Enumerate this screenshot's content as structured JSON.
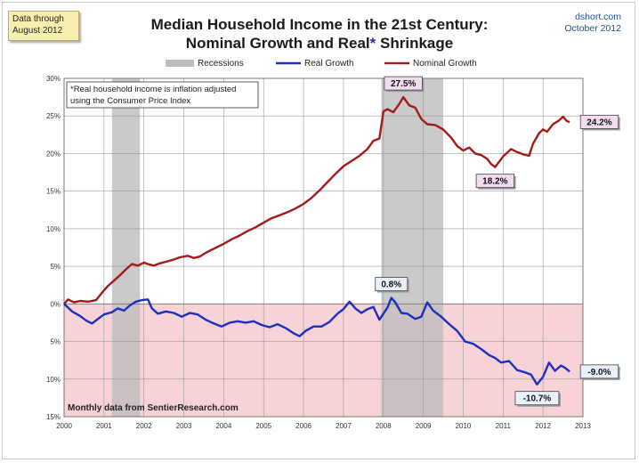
{
  "header": {
    "data_note": [
      "Data through",
      "August 2012"
    ],
    "title_line1": "Median Household Income in the 21st Century:",
    "title_line2_a": "Nominal  Growth and Real",
    "title_line2_star": "*",
    "title_line2_b": " Shrinkage",
    "source_site": "dshort.com",
    "source_date": "October 2012"
  },
  "annotation": [
    "*Real household  income is inflation adjusted",
    "using  the Consumer Price Index"
  ],
  "footer_note": "Monthly data from SentierResearch.com",
  "colors": {
    "nominal": "#a31a1a",
    "real": "#1b2fc0",
    "recession": "#bdbdbd",
    "negative_zone": "#f7d2d6",
    "callout_nominal_bg": "#f2dcf0",
    "callout_real_bg": "#e8f1fb"
  },
  "chart_data": {
    "type": "line",
    "title": "Median Household Income in the 21st Century: Nominal  Growth and Real* Shrinkage",
    "xlabel": "",
    "ylabel": "",
    "xlim": [
      2000,
      2013
    ],
    "ylim": [
      -15,
      30
    ],
    "x_ticks": [
      "2000",
      "2001",
      "2002",
      "2003",
      "2004",
      "2005",
      "2006",
      "2007",
      "2008",
      "2009",
      "2010",
      "2011",
      "2012",
      "2013"
    ],
    "y_ticks": [
      {
        "value": 30,
        "label": "30%"
      },
      {
        "value": 25,
        "label": "25%"
      },
      {
        "value": 20,
        "label": "20%"
      },
      {
        "value": 15,
        "label": "15%"
      },
      {
        "value": 10,
        "label": "10%"
      },
      {
        "value": 5,
        "label": "5%"
      },
      {
        "value": 0,
        "label": "0%"
      },
      {
        "value": -5,
        "label": "5%"
      },
      {
        "value": -10,
        "label": "10%"
      },
      {
        "value": -15,
        "label": "15%"
      }
    ],
    "grid": true,
    "legend": {
      "position": "top",
      "entries": [
        {
          "label": "Recessions",
          "kind": "area"
        },
        {
          "label": "Real Growth",
          "kind": "line",
          "series": "real"
        },
        {
          "label": "Nominal Growth",
          "kind": "line",
          "series": "nominal"
        }
      ]
    },
    "recessions": [
      [
        2001.2,
        2001.9
      ],
      [
        2007.95,
        2009.5
      ]
    ],
    "series": [
      {
        "name": "Nominal Growth",
        "key": "nominal",
        "points": [
          [
            2000.0,
            0.0
          ],
          [
            2000.1,
            0.6
          ],
          [
            2000.25,
            0.2
          ],
          [
            2000.4,
            0.4
          ],
          [
            2000.6,
            0.3
          ],
          [
            2000.8,
            0.5
          ],
          [
            2000.95,
            1.5
          ],
          [
            2001.1,
            2.4
          ],
          [
            2001.25,
            3.1
          ],
          [
            2001.4,
            3.8
          ],
          [
            2001.55,
            4.6
          ],
          [
            2001.7,
            5.3
          ],
          [
            2001.85,
            5.1
          ],
          [
            2002.0,
            5.5
          ],
          [
            2002.1,
            5.3
          ],
          [
            2002.25,
            5.1
          ],
          [
            2002.4,
            5.4
          ],
          [
            2002.55,
            5.6
          ],
          [
            2002.75,
            5.9
          ],
          [
            2002.9,
            6.2
          ],
          [
            2003.1,
            6.4
          ],
          [
            2003.25,
            6.1
          ],
          [
            2003.4,
            6.3
          ],
          [
            2003.55,
            6.8
          ],
          [
            2003.7,
            7.2
          ],
          [
            2003.85,
            7.6
          ],
          [
            2004.0,
            8.0
          ],
          [
            2004.2,
            8.6
          ],
          [
            2004.4,
            9.1
          ],
          [
            2004.6,
            9.7
          ],
          [
            2004.8,
            10.2
          ],
          [
            2005.0,
            10.8
          ],
          [
            2005.2,
            11.4
          ],
          [
            2005.4,
            11.8
          ],
          [
            2005.6,
            12.2
          ],
          [
            2005.8,
            12.7
          ],
          [
            2006.0,
            13.3
          ],
          [
            2006.2,
            14.1
          ],
          [
            2006.4,
            15.1
          ],
          [
            2006.6,
            16.2
          ],
          [
            2006.8,
            17.3
          ],
          [
            2007.0,
            18.3
          ],
          [
            2007.2,
            19.0
          ],
          [
            2007.4,
            19.7
          ],
          [
            2007.6,
            20.6
          ],
          [
            2007.75,
            21.7
          ],
          [
            2007.9,
            22.0
          ],
          [
            2008.0,
            25.6
          ],
          [
            2008.1,
            25.9
          ],
          [
            2008.25,
            25.5
          ],
          [
            2008.4,
            26.6
          ],
          [
            2008.5,
            27.5
          ],
          [
            2008.65,
            26.4
          ],
          [
            2008.8,
            26.1
          ],
          [
            2008.95,
            24.6
          ],
          [
            2009.1,
            23.9
          ],
          [
            2009.3,
            23.8
          ],
          [
            2009.5,
            23.2
          ],
          [
            2009.7,
            22.1
          ],
          [
            2009.85,
            21.0
          ],
          [
            2010.0,
            20.4
          ],
          [
            2010.15,
            20.8
          ],
          [
            2010.3,
            20.0
          ],
          [
            2010.45,
            19.8
          ],
          [
            2010.6,
            19.3
          ],
          [
            2010.7,
            18.6
          ],
          [
            2010.8,
            18.2
          ],
          [
            2010.9,
            18.9
          ],
          [
            2011.0,
            19.6
          ],
          [
            2011.2,
            20.6
          ],
          [
            2011.35,
            20.2
          ],
          [
            2011.5,
            19.9
          ],
          [
            2011.65,
            19.7
          ],
          [
            2011.75,
            21.3
          ],
          [
            2011.9,
            22.7
          ],
          [
            2012.0,
            23.2
          ],
          [
            2012.1,
            22.9
          ],
          [
            2012.25,
            23.9
          ],
          [
            2012.4,
            24.4
          ],
          [
            2012.5,
            24.9
          ],
          [
            2012.6,
            24.3
          ],
          [
            2012.67,
            24.2
          ]
        ]
      },
      {
        "name": "Real Growth",
        "key": "real",
        "points": [
          [
            2000.0,
            0.0
          ],
          [
            2000.2,
            -1.0
          ],
          [
            2000.4,
            -1.6
          ],
          [
            2000.55,
            -2.2
          ],
          [
            2000.7,
            -2.6
          ],
          [
            2000.85,
            -2.0
          ],
          [
            2001.0,
            -1.4
          ],
          [
            2001.2,
            -1.1
          ],
          [
            2001.35,
            -0.6
          ],
          [
            2001.5,
            -0.9
          ],
          [
            2001.65,
            -0.2
          ],
          [
            2001.8,
            0.3
          ],
          [
            2001.95,
            0.5
          ],
          [
            2002.1,
            0.6
          ],
          [
            2002.2,
            -0.6
          ],
          [
            2002.35,
            -1.3
          ],
          [
            2002.55,
            -1.0
          ],
          [
            2002.75,
            -1.2
          ],
          [
            2002.95,
            -1.7
          ],
          [
            2003.15,
            -1.2
          ],
          [
            2003.35,
            -1.4
          ],
          [
            2003.55,
            -2.1
          ],
          [
            2003.75,
            -2.6
          ],
          [
            2003.95,
            -3.0
          ],
          [
            2004.15,
            -2.5
          ],
          [
            2004.35,
            -2.3
          ],
          [
            2004.55,
            -2.5
          ],
          [
            2004.75,
            -2.3
          ],
          [
            2004.95,
            -2.8
          ],
          [
            2005.15,
            -3.1
          ],
          [
            2005.35,
            -2.7
          ],
          [
            2005.55,
            -3.2
          ],
          [
            2005.75,
            -3.9
          ],
          [
            2005.9,
            -4.3
          ],
          [
            2006.05,
            -3.6
          ],
          [
            2006.25,
            -3.0
          ],
          [
            2006.45,
            -3.0
          ],
          [
            2006.65,
            -2.4
          ],
          [
            2006.85,
            -1.3
          ],
          [
            2007.0,
            -0.7
          ],
          [
            2007.15,
            0.3
          ],
          [
            2007.3,
            -0.6
          ],
          [
            2007.45,
            -1.2
          ],
          [
            2007.6,
            -0.7
          ],
          [
            2007.75,
            -0.4
          ],
          [
            2007.9,
            -2.1
          ],
          [
            2008.1,
            -0.5
          ],
          [
            2008.2,
            0.8
          ],
          [
            2008.3,
            0.2
          ],
          [
            2008.45,
            -1.2
          ],
          [
            2008.6,
            -1.3
          ],
          [
            2008.8,
            -2.0
          ],
          [
            2008.95,
            -1.7
          ],
          [
            2009.1,
            0.2
          ],
          [
            2009.25,
            -0.9
          ],
          [
            2009.45,
            -1.7
          ],
          [
            2009.65,
            -2.7
          ],
          [
            2009.85,
            -3.6
          ],
          [
            2010.05,
            -5.0
          ],
          [
            2010.25,
            -5.3
          ],
          [
            2010.45,
            -6.0
          ],
          [
            2010.65,
            -6.8
          ],
          [
            2010.8,
            -7.2
          ],
          [
            2010.95,
            -7.8
          ],
          [
            2011.15,
            -7.6
          ],
          [
            2011.35,
            -8.8
          ],
          [
            2011.55,
            -9.1
          ],
          [
            2011.7,
            -9.4
          ],
          [
            2011.85,
            -10.7
          ],
          [
            2012.0,
            -9.7
          ],
          [
            2012.15,
            -7.8
          ],
          [
            2012.3,
            -8.9
          ],
          [
            2012.45,
            -8.2
          ],
          [
            2012.55,
            -8.5
          ],
          [
            2012.67,
            -9.0
          ]
        ]
      }
    ],
    "callouts": [
      {
        "label": "27.5%",
        "series": "nominal",
        "x": 2008.5,
        "y": 27.5,
        "place": "above"
      },
      {
        "label": "18.2%",
        "series": "nominal",
        "x": 2010.8,
        "y": 18.2,
        "place": "below"
      },
      {
        "label": "24.2%",
        "series": "nominal",
        "x": 2012.67,
        "y": 24.2,
        "place": "right"
      },
      {
        "label": "0.8%",
        "series": "real",
        "x": 2008.2,
        "y": 0.8,
        "place": "above"
      },
      {
        "label": "-10.7%",
        "series": "real",
        "x": 2011.85,
        "y": -10.7,
        "place": "below"
      },
      {
        "label": "-9.0%",
        "series": "real",
        "x": 2012.67,
        "y": -9.0,
        "place": "right"
      }
    ]
  }
}
